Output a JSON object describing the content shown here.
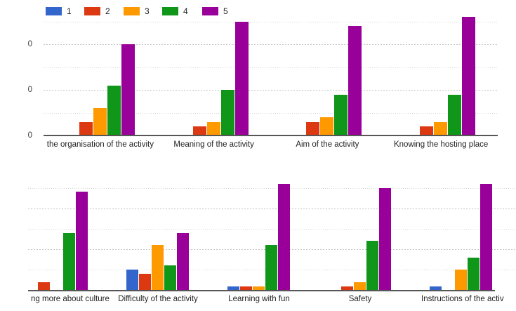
{
  "page": {
    "background": "#ffffff"
  },
  "legend": {
    "position": "top",
    "items": [
      {
        "label": "1",
        "color": "#3366cc"
      },
      {
        "label": "2",
        "color": "#dc3912"
      },
      {
        "label": "3",
        "color": "#ff9900"
      },
      {
        "label": "4",
        "color": "#109618"
      },
      {
        "label": "5",
        "color": "#990099"
      }
    ]
  },
  "chart_data": [
    {
      "type": "bar",
      "categories": [
        "the organisation of the activity",
        "Meaning of the activity",
        "Aim of the activity",
        "Knowing the hosting place"
      ],
      "series": [
        {
          "name": "1",
          "color": "#3366cc",
          "values": [
            0,
            0,
            0,
            0
          ]
        },
        {
          "name": "2",
          "color": "#dc3912",
          "values": [
            3,
            2,
            3,
            2
          ]
        },
        {
          "name": "3",
          "color": "#ff9900",
          "values": [
            6,
            3,
            4,
            3
          ]
        },
        {
          "name": "4",
          "color": "#109618",
          "values": [
            11,
            10,
            9,
            9
          ]
        },
        {
          "name": "5",
          "color": "#990099",
          "values": [
            20,
            25,
            24,
            26
          ]
        }
      ],
      "ylim": [
        0,
        27
      ],
      "yticks": [
        0,
        10,
        20
      ],
      "ytick_labels_visible": [
        "0",
        "0",
        "0"
      ],
      "major_gridlines": [
        10,
        20
      ],
      "minor_gridlines": [
        5,
        15,
        25
      ],
      "grid": "on",
      "legend_position": "top"
    },
    {
      "type": "bar",
      "categories": [
        "ng more about culture",
        "Difficulty of the activity",
        "Learning with fun",
        "Safety",
        "Instructions of the activ"
      ],
      "series": [
        {
          "name": "1",
          "color": "#3366cc",
          "values": [
            0,
            5,
            1,
            0,
            1
          ]
        },
        {
          "name": "2",
          "color": "#dc3912",
          "values": [
            2,
            4,
            1,
            1,
            0
          ]
        },
        {
          "name": "3",
          "color": "#ff9900",
          "values": [
            0,
            11,
            1,
            2,
            5
          ]
        },
        {
          "name": "4",
          "color": "#109618",
          "values": [
            14,
            6,
            11,
            12,
            8
          ]
        },
        {
          "name": "5",
          "color": "#990099",
          "values": [
            24,
            14,
            26,
            25,
            26
          ]
        }
      ],
      "ylim": [
        0,
        27.5
      ],
      "yticks": [],
      "ytick_labels_visible": [],
      "major_gridlines": [
        10,
        20
      ],
      "minor_gridlines": [
        5,
        15,
        25
      ],
      "grid": "on",
      "legend_position": "none"
    }
  ]
}
